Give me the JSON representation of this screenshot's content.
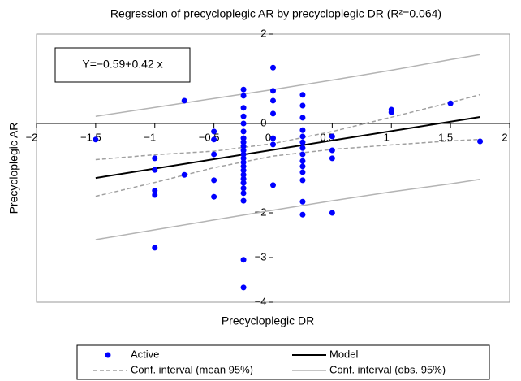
{
  "chart_data": {
    "type": "scatter",
    "title": "Regression of precycloplegic AR by precycloplegic DR (R²=0.064)",
    "xlabel": "Precycloplegic DR",
    "ylabel": "Precycloplegic AR",
    "annotation": "Y=−0.59+0.42 x",
    "xlim": [
      -2,
      2
    ],
    "ylim": [
      -4,
      2
    ],
    "xticks": [
      {
        "value": -2,
        "label": "−2"
      },
      {
        "value": -1.5,
        "label": "−1.5"
      },
      {
        "value": -1,
        "label": "−1"
      },
      {
        "value": -0.5,
        "label": "−0.5"
      },
      0,
      0.5,
      1,
      1.5,
      2
    ],
    "yticks": [
      2,
      0,
      {
        "value": -2,
        "label": "−2"
      },
      {
        "value": -3,
        "label": "−3"
      },
      {
        "value": -4,
        "label": "−4"
      }
    ],
    "series": [
      {
        "name": "Active",
        "type": "scatter",
        "color": "#0000ff",
        "x": [
          -1.5,
          -1,
          -1,
          -1,
          -1,
          -1,
          -0.75,
          -0.75,
          -0.5,
          -0.5,
          -0.5,
          -0.5,
          -0.5,
          -0.25,
          -0.25,
          -0.25,
          -0.25,
          -0.25,
          -0.25,
          -0.25,
          -0.25,
          -0.25,
          -0.25,
          -0.25,
          -0.25,
          -0.25,
          -0.25,
          -0.25,
          -0.25,
          -0.25,
          -0.25,
          -0.25,
          -0.25,
          -0.25,
          -0.25,
          -0.25,
          0,
          0,
          0,
          0,
          0,
          0,
          0,
          0.25,
          0.25,
          0.25,
          0.25,
          0.25,
          0.25,
          0.25,
          0.25,
          0.25,
          0.25,
          0.25,
          0.25,
          0.25,
          0.25,
          0.5,
          0.5,
          0.5,
          0.5,
          1,
          1,
          1.5,
          1.75
        ],
        "values": [
          -0.36,
          -0.78,
          -1.04,
          -1.5,
          -1.6,
          -2.78,
          0.51,
          -1.15,
          -0.18,
          -0.36,
          -0.69,
          -1.27,
          -1.64,
          0.76,
          0.62,
          0.35,
          0.16,
          0,
          -0.18,
          -0.33,
          -0.42,
          -0.51,
          -0.6,
          -0.69,
          -0.78,
          -0.87,
          -0.96,
          -1.05,
          -1.15,
          -1.24,
          -1.33,
          -1.45,
          -1.56,
          -1.73,
          -3.05,
          -3.67,
          1.25,
          0.73,
          0.51,
          0.22,
          -0.33,
          -0.47,
          -1.38,
          0.64,
          0.4,
          0.13,
          -0.15,
          -0.29,
          -0.42,
          -0.55,
          -0.69,
          -0.84,
          -0.96,
          -1.09,
          -1.27,
          -1.75,
          -2.04,
          -0.29,
          -0.6,
          -0.78,
          -2.0,
          0.31,
          0.25,
          0.45,
          -0.4
        ]
      },
      {
        "name": "Model",
        "type": "line",
        "color": "#000000",
        "x": [
          -1.5,
          1.75
        ],
        "values": [
          -1.22,
          0.145
        ]
      },
      {
        "name": "Conf. interval (mean 95%)",
        "type": "band",
        "color": "#a0a0a0",
        "dashed": true,
        "x": [
          -1.5,
          -1,
          -0.5,
          0,
          0.5,
          1,
          1.5,
          1.75
        ],
        "values": [
          -0.81,
          -0.7,
          -0.62,
          -0.45,
          -0.18,
          0.14,
          0.47,
          0.645
        ],
        "lower": [
          -1.63,
          -1.32,
          -0.99,
          -0.73,
          -0.58,
          -0.48,
          -0.39,
          -0.355
        ]
      },
      {
        "name": "Conf. interval (obs. 95%)",
        "type": "band",
        "color": "#b4b4b4",
        "dashed": false,
        "x": [
          -1.5,
          -1,
          -0.5,
          0,
          0.5,
          1,
          1.5,
          1.75
        ],
        "values": [
          0.16,
          0.36,
          0.56,
          0.76,
          0.97,
          1.19,
          1.43,
          1.54
        ],
        "lower": [
          -2.6,
          -2.38,
          -2.16,
          -1.94,
          -1.73,
          -1.53,
          -1.35,
          -1.25
        ]
      }
    ]
  }
}
